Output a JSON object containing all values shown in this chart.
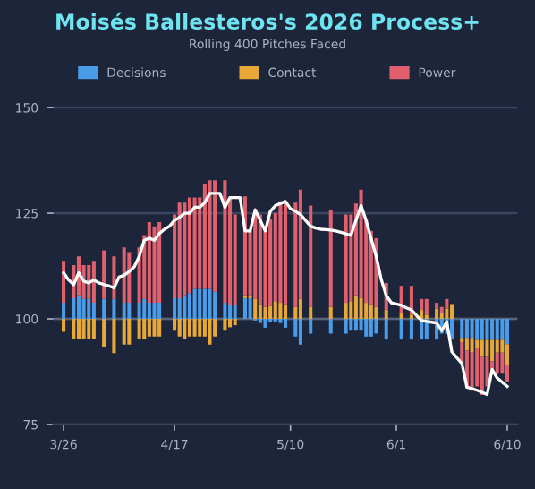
{
  "chart_data": {
    "type": "bar",
    "title": "Moisés Ballesteros's 2026 Process+",
    "subtitle": "Rolling 400 Pitches Faced",
    "categories": [
      "3/26",
      null,
      null,
      null,
      null,
      null,
      null,
      null,
      null,
      null,
      null,
      null,
      null,
      null,
      null,
      null,
      null,
      null,
      null,
      null,
      null,
      null,
      "4/17",
      null,
      null,
      null,
      null,
      null,
      null,
      null,
      null,
      null,
      null,
      null,
      null,
      null,
      null,
      null,
      null,
      null,
      null,
      null,
      null,
      null,
      null,
      "5/10",
      null,
      null,
      null,
      null,
      null,
      null,
      null,
      null,
      null,
      null,
      null,
      null,
      null,
      null,
      null,
      null,
      null,
      null,
      null,
      null,
      "6/1",
      null,
      null,
      null,
      null,
      null,
      null,
      null,
      null,
      null,
      null,
      null,
      null,
      null,
      null,
      null,
      null,
      null,
      null,
      null,
      null,
      null,
      "6/10"
    ],
    "series": [
      {
        "name": "Decisions",
        "color": "#4a9be8",
        "values": [
          3.8,
          null,
          4.9,
          5.6,
          4.7,
          4.7,
          3.8,
          null,
          4.7,
          null,
          4.7,
          null,
          3.8,
          3.8,
          null,
          3.8,
          4.7,
          3.8,
          3.8,
          3.8,
          null,
          null,
          4.9,
          4.9,
          5.6,
          6.1,
          7.1,
          7.1,
          7.1,
          7.1,
          6.4,
          null,
          3.8,
          3.3,
          3.3,
          null,
          4.9,
          4.9,
          -0.4,
          -1,
          -2.1,
          -0.7,
          -0.7,
          -1,
          -2.1,
          null,
          -4.2,
          -6.1,
          null,
          -3.5,
          null,
          null,
          null,
          -3.5,
          null,
          null,
          -3.5,
          -2.8,
          -2.8,
          -2.8,
          -4.2,
          -4.2,
          -3.5,
          null,
          -4.9,
          null,
          null,
          -4.9,
          null,
          -4.9,
          null,
          -4.9,
          -4.9,
          null,
          -4.9,
          -3.5,
          -3.5,
          -4.9,
          null,
          -4.5,
          -4.5,
          -4.5,
          -5,
          -5,
          -5,
          -5,
          -5,
          -5,
          -6
        ],
        "base": [
          100,
          null,
          100,
          100,
          100,
          100,
          100,
          null,
          100,
          null,
          100,
          null,
          100,
          100,
          null,
          100,
          100,
          100,
          100,
          100,
          null,
          null,
          100,
          100,
          100,
          100,
          100,
          100,
          100,
          100,
          100,
          null,
          100,
          100,
          100,
          null,
          100,
          100,
          100,
          100,
          100,
          100,
          100,
          100,
          100,
          null,
          100,
          100,
          null,
          100,
          null,
          null,
          null,
          100,
          null,
          null,
          100,
          100,
          100,
          100,
          100,
          100,
          100,
          null,
          100,
          null,
          null,
          100,
          null,
          100,
          null,
          100,
          100,
          null,
          100,
          100,
          100,
          100,
          null,
          100,
          100,
          100,
          100,
          100,
          100,
          100,
          100,
          100,
          100
        ]
      },
      {
        "name": "Contact",
        "color": "#e8a838",
        "values": [
          -3.1,
          null,
          -4.9,
          -4.9,
          -4.9,
          -4.9,
          -4.9,
          null,
          -6.8,
          null,
          -8.1,
          null,
          -6.1,
          -6.1,
          null,
          -4.9,
          -4.9,
          -4.2,
          -4.2,
          -4.2,
          null,
          null,
          -2.8,
          -4.2,
          -4.9,
          -4.2,
          -4.2,
          -4.2,
          -4.2,
          -6.1,
          -4.2,
          null,
          -2.8,
          -2,
          -1.5,
          null,
          0.7,
          0.7,
          4.7,
          3.5,
          2.8,
          3.1,
          4.2,
          3.8,
          3.5,
          null,
          2.8,
          4.7,
          null,
          2.8,
          null,
          null,
          null,
          2.8,
          null,
          null,
          3.8,
          4.2,
          5.6,
          4.9,
          3.8,
          3.5,
          2.8,
          null,
          2.1,
          null,
          null,
          1.4,
          null,
          1,
          null,
          2.1,
          1,
          null,
          2.4,
          1.4,
          2.4,
          3.5,
          null,
          -1,
          -3,
          -3.5,
          -2,
          -4,
          -4,
          -5,
          -3,
          -3,
          -5
        ],
        "base": [
          100,
          null,
          100,
          100,
          100,
          100,
          100,
          null,
          100,
          null,
          100,
          null,
          100,
          100,
          null,
          100,
          100,
          100,
          100,
          100,
          null,
          null,
          100,
          100,
          100,
          100,
          100,
          100,
          100,
          100,
          100,
          null,
          100,
          100,
          100,
          null,
          104.9,
          104.9,
          100,
          100,
          100,
          100,
          100,
          100,
          100,
          null,
          100,
          100,
          null,
          100,
          null,
          null,
          null,
          100,
          null,
          null,
          100,
          100,
          100,
          100,
          100,
          100,
          100,
          null,
          100,
          null,
          null,
          100,
          null,
          100,
          null,
          100,
          100,
          null,
          100,
          100,
          100,
          100,
          null,
          95.5,
          95.5,
          95.5,
          95,
          95,
          95,
          95,
          95,
          95,
          94
        ]
      },
      {
        "name": "Power",
        "color": "#e0606e",
        "values": [
          9.9,
          null,
          7.8,
          9.2,
          8.0,
          8.0,
          9.9,
          null,
          11.5,
          null,
          10.1,
          null,
          13.1,
          12.0,
          null,
          13.1,
          15.1,
          19.1,
          18.1,
          19.1,
          null,
          null,
          19.8,
          22.6,
          21.9,
          22.6,
          21.6,
          21.6,
          24.7,
          25.7,
          26.4,
          null,
          29,
          25.4,
          21.4,
          null,
          23.4,
          15.2,
          20.3,
          21.2,
          19.1,
          20.5,
          20.8,
          24.0,
          24.0,
          null,
          24.7,
          25.9,
          null,
          24.0,
          null,
          null,
          null,
          23.0,
          null,
          null,
          20.9,
          20.5,
          21.7,
          25.7,
          19.8,
          17.3,
          16.3,
          null,
          6.4,
          null,
          null,
          6.4,
          null,
          6.8,
          null,
          2.6,
          3.7,
          null,
          1.4,
          1.4,
          2.3,
          null,
          null,
          -5,
          -9,
          -9,
          -9,
          -9,
          -7,
          -2,
          -5,
          -5,
          -4
        ],
        "base": [
          103.8,
          null,
          104.9,
          105.6,
          104.7,
          104.7,
          103.8,
          null,
          104.7,
          null,
          104.7,
          null,
          103.8,
          103.8,
          null,
          103.8,
          104.7,
          103.8,
          103.8,
          103.8,
          null,
          null,
          104.9,
          104.9,
          105.6,
          106.1,
          107.1,
          107.1,
          107.1,
          107.1,
          106.4,
          null,
          103.8,
          103.3,
          103.3,
          null,
          105.6,
          105.6,
          104.7,
          103.5,
          102.8,
          103.1,
          104.2,
          103.8,
          103.5,
          null,
          102.8,
          104.7,
          null,
          102.8,
          null,
          null,
          null,
          102.8,
          null,
          null,
          103.8,
          104.2,
          105.6,
          104.9,
          103.8,
          103.5,
          102.8,
          null,
          102.1,
          null,
          null,
          101.4,
          null,
          101,
          null,
          102.1,
          101,
          null,
          102.4,
          101.4,
          102.4,
          null,
          null,
          94.5,
          92.5,
          92,
          93,
          91,
          91,
          90,
          92,
          92,
          89
        ]
      },
      {
        "type": "line",
        "color": "#ffffff",
        "values": [
          110.9,
          109.2,
          108.1,
          110.9,
          108.9,
          108.5,
          109.2,
          108.5,
          108.1,
          107.8,
          107.3,
          109.9,
          110.3,
          111.2,
          112.3,
          114.8,
          118.6,
          119.1,
          118.6,
          120.2,
          121.2,
          121.9,
          123.3,
          124,
          125,
          125,
          126.4,
          126.4,
          127.5,
          129.7,
          129.7,
          129.7,
          126.4,
          128.7,
          128.7,
          128.7,
          120.8,
          120.8,
          125.8,
          123.3,
          120.8,
          125.4,
          126.8,
          127.3,
          127.8,
          126.1,
          125.4,
          124.7,
          123.3,
          121.9,
          121.5,
          121.2,
          121.1,
          121,
          120.8,
          120.5,
          120.1,
          119.8,
          123.3,
          126.8,
          123.3,
          119,
          114.8,
          109.3,
          105.5,
          103.8,
          103.5,
          103.2,
          102.6,
          102.1,
          100.8,
          99.6,
          99.4,
          99.2,
          99,
          97.2,
          99.3,
          92.2,
          90.8,
          89.4,
          83.8,
          83.5,
          83.1,
          82.6,
          82.1,
          88,
          86,
          85,
          84
        ]
      }
    ],
    "ylim": [
      75,
      150
    ],
    "yticks": [
      75,
      100,
      125,
      150
    ],
    "grid": "y",
    "legend": "top",
    "ref_lines": [
      {
        "axis": "y",
        "value": 100,
        "color": "#5a6478"
      }
    ]
  }
}
